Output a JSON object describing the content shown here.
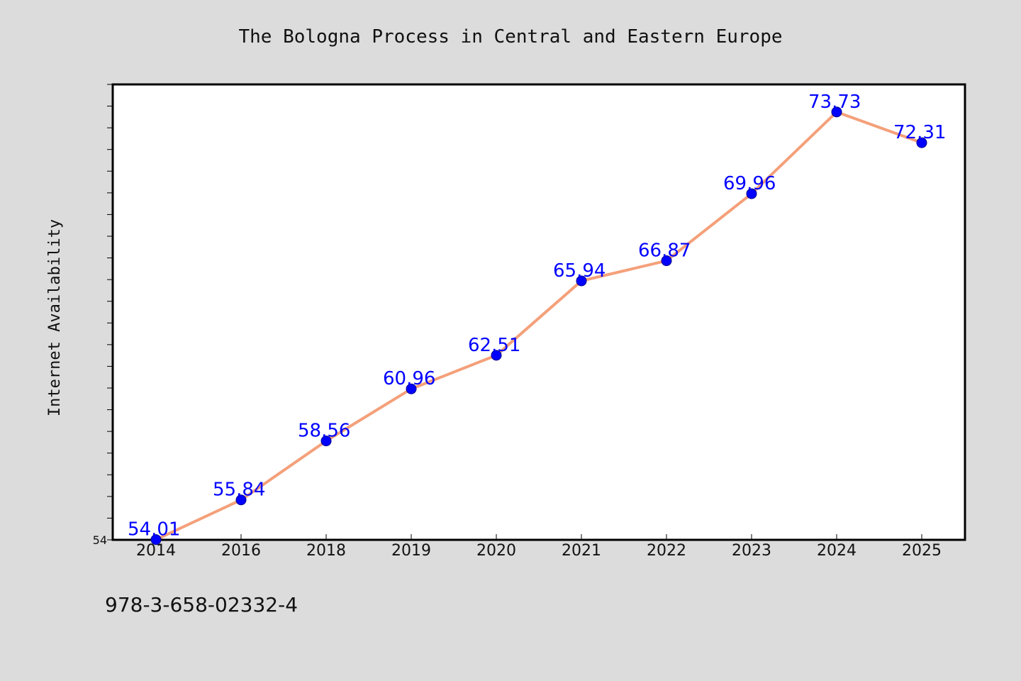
{
  "chart_data": {
    "type": "line",
    "title": "The Bologna Process in Central and Eastern Europe",
    "xlabel": "",
    "ylabel": "Internet Availability",
    "categories": [
      "2014",
      "2016",
      "2018",
      "2019",
      "2020",
      "2021",
      "2022",
      "2023",
      "2024",
      "2025"
    ],
    "series": [
      {
        "values": [
          54.01,
          55.84,
          58.56,
          60.96,
          62.51,
          65.94,
          66.87,
          69.96,
          73.73,
          72.31
        ]
      }
    ],
    "data_labels": [
      "54.01",
      "55.84",
      "58.56",
      "60.96",
      "62.51",
      "65.94",
      "66.87",
      "69.96",
      "73.73",
      "72.31"
    ],
    "ylim": [
      54,
      75
    ],
    "yticks_labeled": [
      "54"
    ],
    "grid": false,
    "legend": "none",
    "colors": {
      "line": "#f4a07a",
      "marker": "#0000ff",
      "marker_edge": "#00008b",
      "data_label": "#0000ff",
      "plot_bg": "#ffffff",
      "page_bg": "#dcdcdc"
    }
  },
  "footer": {
    "isbn": "978-3-658-02332-4"
  }
}
